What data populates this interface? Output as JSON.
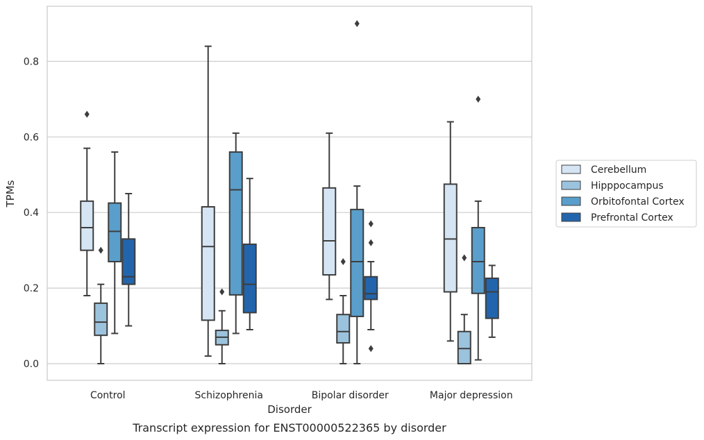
{
  "chart_data": {
    "type": "box",
    "caption": "Transcript expression for ENST00000522365 by disorder",
    "xlabel": "Disorder",
    "ylabel": "TPMs",
    "ylim": [
      -0.04,
      0.95
    ],
    "yticks": [
      "0.0",
      "0.2",
      "0.4",
      "0.6",
      "0.8"
    ],
    "grid": true,
    "legend_position": "right",
    "categories": [
      "Control",
      "Schizophrenia",
      "Bipolar disorder",
      "Major depression"
    ],
    "series": [
      {
        "name": "Cerebellum",
        "color": "#d6e5f4",
        "boxes": [
          {
            "whislo": 0.18,
            "q1": 0.3,
            "med": 0.36,
            "q3": 0.43,
            "whishi": 0.57,
            "fliers": [
              0.66
            ]
          },
          {
            "whislo": 0.02,
            "q1": 0.115,
            "med": 0.31,
            "q3": 0.415,
            "whishi": 0.84,
            "fliers": []
          },
          {
            "whislo": 0.17,
            "q1": 0.235,
            "med": 0.325,
            "q3": 0.465,
            "whishi": 0.61,
            "fliers": []
          },
          {
            "whislo": 0.06,
            "q1": 0.19,
            "med": 0.33,
            "q3": 0.475,
            "whishi": 0.64,
            "fliers": []
          }
        ]
      },
      {
        "name": "Hipppocampus",
        "color": "#9cc3de",
        "boxes": [
          {
            "whislo": 0.0,
            "q1": 0.075,
            "med": 0.11,
            "q3": 0.16,
            "whishi": 0.21,
            "fliers": [
              0.3
            ]
          },
          {
            "whislo": 0.0,
            "q1": 0.05,
            "med": 0.07,
            "q3": 0.088,
            "whishi": 0.14,
            "fliers": [
              0.19
            ]
          },
          {
            "whislo": 0.0,
            "q1": 0.055,
            "med": 0.085,
            "q3": 0.13,
            "whishi": 0.18,
            "fliers": [
              0.27
            ]
          },
          {
            "whislo": 0.0,
            "q1": 0.0,
            "med": 0.04,
            "q3": 0.085,
            "whishi": 0.13,
            "fliers": [
              0.28
            ]
          }
        ]
      },
      {
        "name": "Orbitofontal Cortex",
        "color": "#5a9ecb",
        "boxes": [
          {
            "whislo": 0.08,
            "q1": 0.27,
            "med": 0.35,
            "q3": 0.425,
            "whishi": 0.56,
            "fliers": []
          },
          {
            "whislo": 0.08,
            "q1": 0.182,
            "med": 0.46,
            "q3": 0.56,
            "whishi": 0.61,
            "fliers": []
          },
          {
            "whislo": 0.0,
            "q1": 0.125,
            "med": 0.27,
            "q3": 0.408,
            "whishi": 0.47,
            "fliers": [
              0.9
            ]
          },
          {
            "whislo": 0.01,
            "q1": 0.186,
            "med": 0.27,
            "q3": 0.36,
            "whishi": 0.43,
            "fliers": [
              0.7
            ]
          }
        ]
      },
      {
        "name": "Prefrontal Cortex",
        "color": "#2265ac",
        "boxes": [
          {
            "whislo": 0.1,
            "q1": 0.21,
            "med": 0.23,
            "q3": 0.33,
            "whishi": 0.45,
            "fliers": []
          },
          {
            "whislo": 0.09,
            "q1": 0.135,
            "med": 0.21,
            "q3": 0.316,
            "whishi": 0.49,
            "fliers": []
          },
          {
            "whislo": 0.09,
            "q1": 0.17,
            "med": 0.185,
            "q3": 0.23,
            "whishi": 0.27,
            "fliers": [
              0.04,
              0.32,
              0.37
            ]
          },
          {
            "whislo": 0.07,
            "q1": 0.12,
            "med": 0.19,
            "q3": 0.226,
            "whishi": 0.26,
            "fliers": []
          }
        ]
      }
    ]
  }
}
